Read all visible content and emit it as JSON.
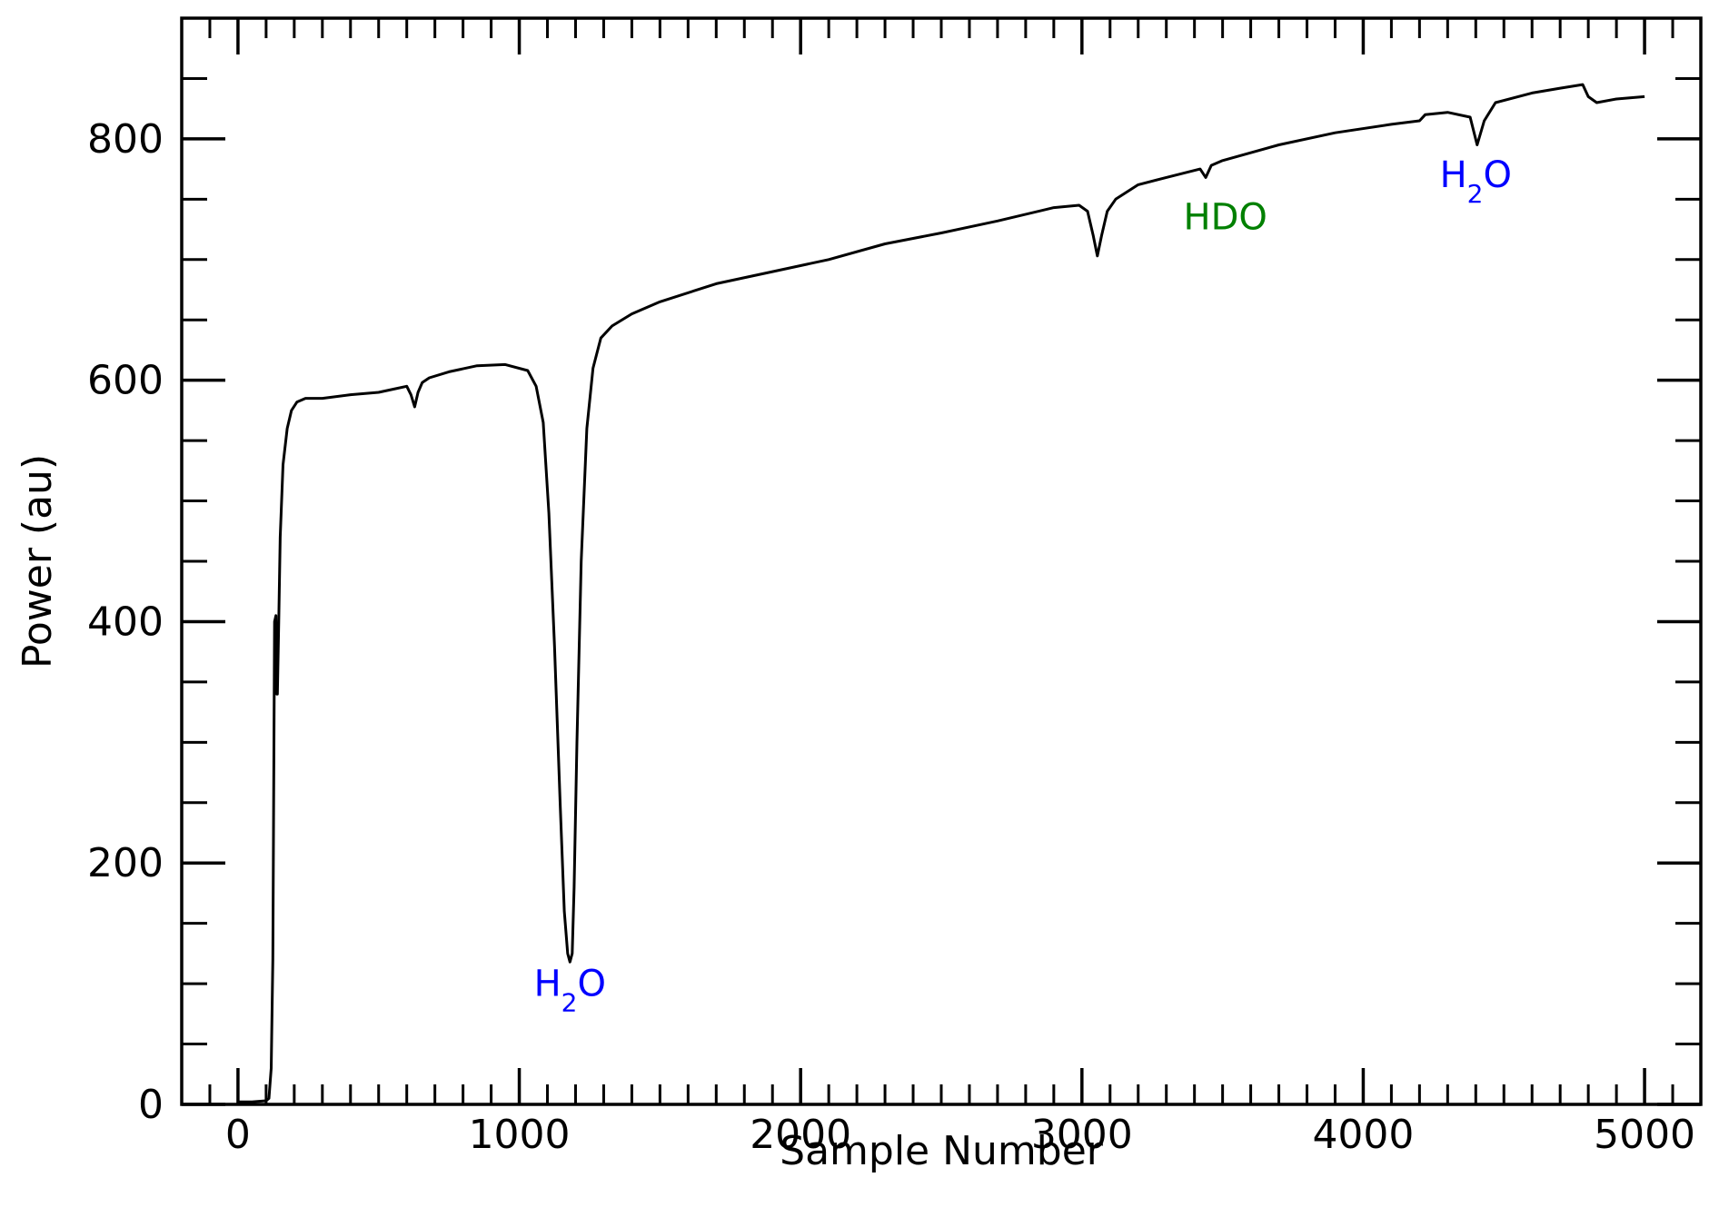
{
  "chart_data": {
    "type": "line",
    "title": "",
    "xlabel": "Sample Number",
    "ylabel": "Power (au)",
    "xlim": [
      -200,
      5200
    ],
    "ylim": [
      0,
      900
    ],
    "x_ticks": [
      0,
      1000,
      2000,
      3000,
      4000,
      5000
    ],
    "x_minor_step": 100,
    "y_ticks": [
      0,
      200,
      400,
      600,
      800
    ],
    "y_minor_step": 50,
    "grid": false,
    "legend": "none",
    "line_color": "#000000",
    "series": [
      {
        "x": [
          0,
          50,
          100,
          110,
          118,
          124,
          130,
          135,
          138,
          140,
          145,
          150,
          160,
          175,
          190,
          210,
          240,
          300,
          400,
          500,
          560,
          600,
          615,
          628,
          640,
          655,
          680,
          750,
          850,
          950,
          1030,
          1060,
          1085,
          1105,
          1125,
          1145,
          1160,
          1172,
          1180,
          1188,
          1195,
          1205,
          1220,
          1240,
          1262,
          1290,
          1330,
          1400,
          1500,
          1700,
          1900,
          2100,
          2300,
          2500,
          2700,
          2900,
          2990,
          3020,
          3040,
          3055,
          3070,
          3090,
          3120,
          3200,
          3300,
          3420,
          3440,
          3460,
          3500,
          3700,
          3900,
          4100,
          4200,
          4220,
          4300,
          4380,
          4405,
          4430,
          4470,
          4600,
          4700,
          4780,
          4800,
          4830,
          4900,
          5000
        ],
        "y": [
          2,
          2,
          3,
          5,
          30,
          120,
          400,
          405,
          340,
          340,
          400,
          470,
          530,
          560,
          575,
          582,
          585,
          585,
          588,
          590,
          593,
          595,
          588,
          578,
          590,
          598,
          602,
          607,
          612,
          613,
          608,
          595,
          565,
          490,
          380,
          250,
          160,
          125,
          118,
          125,
          180,
          300,
          450,
          560,
          610,
          635,
          645,
          655,
          665,
          680,
          690,
          700,
          713,
          722,
          732,
          743,
          745,
          740,
          720,
          703,
          720,
          740,
          750,
          762,
          768,
          775,
          768,
          778,
          782,
          795,
          805,
          812,
          815,
          820,
          822,
          818,
          795,
          815,
          830,
          838,
          842,
          845,
          835,
          830,
          833,
          835
        ]
      }
    ],
    "annotations": [
      {
        "base": "H",
        "sub": "2",
        "rest": "O",
        "x": 1180,
        "y": 90,
        "color": "#0000ff"
      },
      {
        "base": "HDO",
        "sub": "",
        "rest": "",
        "x": 3510,
        "y": 725,
        "color": "#008000"
      },
      {
        "base": "H",
        "sub": "2",
        "rest": "O",
        "x": 4400,
        "y": 760,
        "color": "#0000ff"
      }
    ]
  }
}
